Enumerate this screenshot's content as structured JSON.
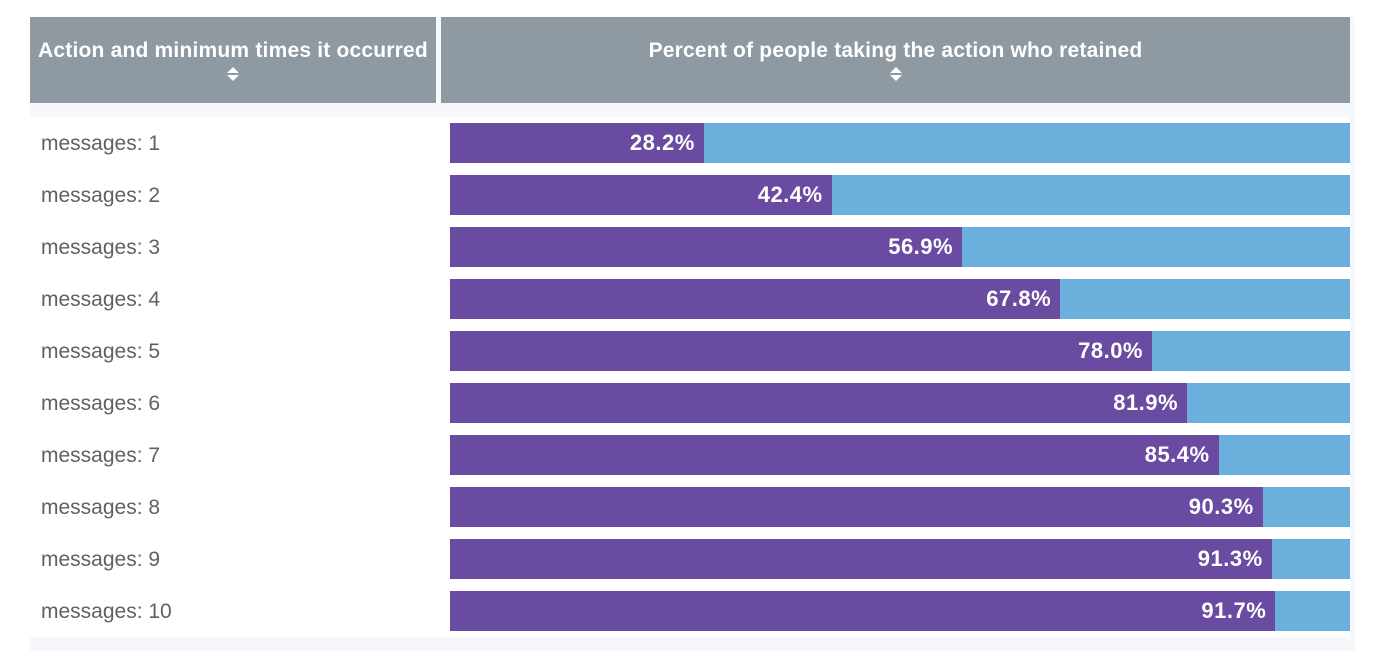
{
  "table": {
    "columns": [
      {
        "label": "Action and minimum times it occurred",
        "sort_icon": "sort-up-down"
      },
      {
        "label": "Percent of people taking the action who retained",
        "sort_icon": "sort-up-down"
      }
    ]
  },
  "chart_data": {
    "type": "bar",
    "orientation": "horizontal",
    "title": "",
    "xlabel": "Percent of people taking the action who retained",
    "ylabel": "Action and minimum times it occurred",
    "xlim": [
      0,
      100
    ],
    "categories": [
      "messages: 1",
      "messages: 2",
      "messages: 3",
      "messages: 4",
      "messages: 5",
      "messages: 6",
      "messages: 7",
      "messages: 8",
      "messages: 9",
      "messages: 10"
    ],
    "values": [
      28.2,
      42.4,
      56.9,
      67.8,
      78.0,
      81.9,
      85.4,
      90.3,
      91.3,
      91.7
    ],
    "value_labels": [
      "28.2%",
      "42.4%",
      "56.9%",
      "67.8%",
      "78.0%",
      "81.9%",
      "85.4%",
      "90.3%",
      "91.3%",
      "91.7%"
    ],
    "legend": [],
    "grid": false,
    "colors": {
      "bar_fill": "#6a4ba2",
      "bar_track": "#6bafdc",
      "header_bg": "#8e99a1",
      "header_text": "#ffffff",
      "row_label_text": "#606164",
      "panel_bg": "#f7f8fc"
    }
  }
}
